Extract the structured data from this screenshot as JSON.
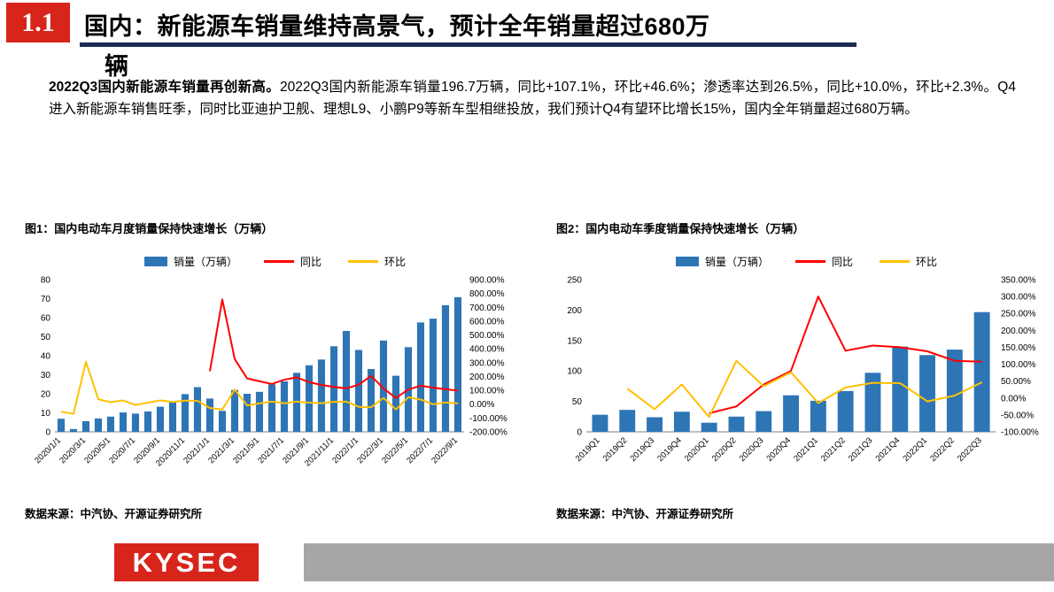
{
  "header": {
    "section_number": "1.1",
    "title_line1": "国内：新能源车销量维持高景气，预计全年销量超过680万",
    "title_line2": "辆"
  },
  "body": {
    "lead": "2022Q3国内新能源车销量再创新高。",
    "rest": "2022Q3国内新能源车销量196.7万辆，同比+107.1%，环比+46.6%；渗透率达到26.5%，同比+10.0%，环比+2.3%。Q4进入新能源车销售旺季，同时比亚迪护卫舰、理想L9、小鹏P9等新车型相继投放，我们预计Q4有望环比增长15%，国内全年销量超过680万辆。"
  },
  "figures": [
    {
      "title": "图1：国内电动车月度销量保持快速增长（万辆）",
      "legend": [
        "销量（万辆）",
        "同比",
        "环比"
      ],
      "source": "数据来源：中汽协、开源证券研究所"
    },
    {
      "title": "图2：国内电动车季度销量保持快速增长（万辆）",
      "legend": [
        "销量（万辆）",
        "同比",
        "环比"
      ],
      "source": "数据来源：中汽协、开源证券研究所"
    }
  ],
  "footer": {
    "logo_text": "KYSEC"
  },
  "colors": {
    "brand_red": "#d8251c",
    "rule_navy": "#1a2a52",
    "bar_blue": "#2e75b6",
    "line_red": "#ff0000",
    "line_yellow": "#ffc000",
    "footer_gray": "#a6a6a6"
  },
  "chart_data": [
    {
      "type": "bar",
      "title": "图1：国内电动车月度销量保持快速增长（万辆）",
      "categories": [
        "2020/1/1",
        "2020/2/1",
        "2020/3/1",
        "2020/4/1",
        "2020/5/1",
        "2020/6/1",
        "2020/7/1",
        "2020/8/1",
        "2020/9/1",
        "2020/10/1",
        "2020/11/1",
        "2020/12/1",
        "2021/1/1",
        "2021/2/1",
        "2021/3/1",
        "2021/4/1",
        "2021/5/1",
        "2021/6/1",
        "2021/7/1",
        "2021/8/1",
        "2021/9/1",
        "2021/10/1",
        "2021/11/1",
        "2021/12/1",
        "2022/1/1",
        "2022/2/1",
        "2022/3/1",
        "2022/4/1",
        "2022/5/1",
        "2022/6/1",
        "2022/7/1",
        "2022/8/1",
        "2022/9/1"
      ],
      "label_every": 2,
      "left_axis": {
        "min": 0,
        "max": 80,
        "step": 10
      },
      "right_axis": {
        "min": -200,
        "max": 900,
        "step": 100,
        "suffix": "%"
      },
      "legend_position": "top",
      "grid": false,
      "series": [
        {
          "name": "销量（万辆）",
          "type": "bar",
          "axis": "left",
          "color": "#2e75b6",
          "values": [
            6.9,
            1.5,
            5.6,
            7.0,
            8.0,
            10.2,
            9.6,
            10.7,
            13.2,
            15.5,
            19.8,
            23.5,
            17.5,
            11.0,
            22.0,
            20.0,
            21.0,
            25.0,
            26.5,
            31.0,
            35.0,
            38.0,
            45.0,
            53.0,
            43.0,
            33.0,
            48.0,
            29.5,
            44.5,
            57.5,
            59.5,
            66.5,
            70.8
          ]
        },
        {
          "name": "同比",
          "type": "line",
          "axis": "right",
          "color": "#ff0000",
          "values": [
            null,
            null,
            null,
            null,
            null,
            null,
            null,
            null,
            null,
            null,
            null,
            null,
            238,
            757,
            326,
            186,
            165,
            146,
            177,
            194,
            159,
            139,
            125,
            114,
            141,
            204,
            114,
            45,
            106,
            133,
            119,
            108,
            98
          ]
        },
        {
          "name": "环比",
          "type": "line",
          "axis": "right",
          "color": "#ffc000",
          "values": [
            -54,
            -70,
            306,
            36,
            14,
            27,
            -6,
            11,
            27,
            16,
            25,
            24,
            -28,
            -39,
            105,
            -9,
            5,
            18,
            6,
            18,
            11,
            7,
            17,
            18,
            -19,
            -22,
            45,
            -38,
            50,
            33,
            -1,
            12,
            6
          ]
        }
      ]
    },
    {
      "type": "bar",
      "title": "图2：国内电动车季度销量保持快速增长（万辆）",
      "categories": [
        "2019Q1",
        "2019Q2",
        "2019Q3",
        "2019Q4",
        "2020Q1",
        "2020Q2",
        "2020Q3",
        "2020Q4",
        "2021Q1",
        "2021Q2",
        "2021Q3",
        "2021Q4",
        "2022Q1",
        "2022Q2",
        "2022Q3"
      ],
      "label_every": 1,
      "left_axis": {
        "min": 0,
        "max": 250,
        "step": 50
      },
      "right_axis": {
        "min": -100,
        "max": 350,
        "step": 50,
        "suffix": "%"
      },
      "legend_position": "top",
      "grid": false,
      "series": [
        {
          "name": "销量（万辆）",
          "type": "bar",
          "axis": "left",
          "color": "#2e75b6",
          "values": [
            28,
            36,
            24,
            33,
            15,
            25,
            34,
            60,
            51,
            67,
            97,
            140,
            126,
            135,
            196.7
          ]
        },
        {
          "name": "同比",
          "type": "line",
          "axis": "right",
          "color": "#ff0000",
          "values": [
            null,
            null,
            null,
            null,
            -45,
            -25,
            40,
            80,
            300,
            140,
            155,
            150,
            138,
            110,
            107.1
          ]
        },
        {
          "name": "环比",
          "type": "line",
          "axis": "right",
          "color": "#ffc000",
          "values": [
            null,
            28,
            -33,
            40,
            -56,
            110,
            35,
            76,
            -15,
            31,
            45,
            44,
            -10,
            7,
            46.6
          ]
        }
      ]
    }
  ]
}
